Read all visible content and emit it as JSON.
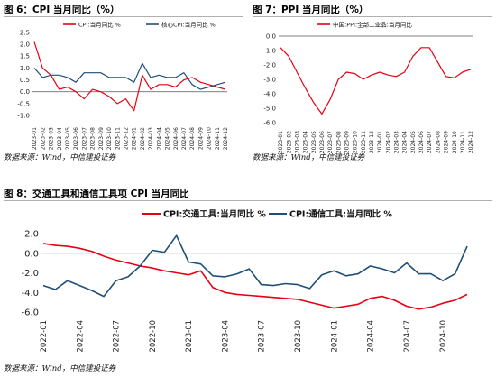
{
  "figures": [
    {
      "label": "图 6：CPI 当月同比（%）",
      "source": "数据来源：Wind，中信建投证券",
      "chart_data": {
        "type": "line",
        "x": [
          "2023-01",
          "2023-02",
          "2023-03",
          "2023-04",
          "2023-05",
          "2023-06",
          "2023-07",
          "2023-08",
          "2023-09",
          "2023-10",
          "2023-11",
          "2023-12",
          "2024-01",
          "2024-02",
          "2024-03",
          "2024-04",
          "2024-05",
          "2024-06",
          "2024-07",
          "2024-08",
          "2024-09",
          "2024-10",
          "2024-11",
          "2024-12"
        ],
        "x_ticks": [
          "2023-01",
          "2023-02",
          "2023-03",
          "2023-04",
          "2023-05",
          "2023-06",
          "2023-07",
          "2023-08",
          "2023-09",
          "2023-10",
          "2023-11",
          "2023-12",
          "2024-01",
          "2024-02",
          "2024-03",
          "2024-04",
          "2024-05",
          "2024-06",
          "2024-07",
          "2024-08",
          "2024-09",
          "2024-10",
          "2024-11",
          "2024-12"
        ],
        "ylim": [
          -1.0,
          2.5
        ],
        "yticks": [
          "-1.0",
          "-0.5",
          "0.0",
          "0.5",
          "1.0",
          "1.5",
          "2.0",
          "2.5"
        ],
        "legend_position": "top",
        "grid": false,
        "series": [
          {
            "name": "CPI:当月同比 %",
            "color": "#e60012",
            "values": [
              2.1,
              1.0,
              0.7,
              0.1,
              0.2,
              0.0,
              -0.3,
              0.1,
              0.0,
              -0.2,
              -0.5,
              -0.3,
              -0.8,
              0.7,
              0.1,
              0.3,
              0.3,
              0.2,
              0.5,
              0.6,
              0.4,
              0.3,
              0.2,
              0.1
            ]
          },
          {
            "name": "核心CPI:当月同比 %",
            "color": "#1f4e79",
            "values": [
              1.0,
              0.6,
              0.7,
              0.7,
              0.6,
              0.4,
              0.8,
              0.8,
              0.8,
              0.6,
              0.6,
              0.6,
              0.4,
              1.2,
              0.6,
              0.7,
              0.6,
              0.6,
              0.8,
              0.3,
              0.1,
              0.2,
              0.3,
              0.4
            ]
          }
        ]
      }
    },
    {
      "label": "图 7：PPI 当月同比（%）",
      "source": "数据来源：Wind，中信建投证券",
      "chart_data": {
        "type": "line",
        "x": [
          "2023-01",
          "2023-02",
          "2023-03",
          "2023-04",
          "2023-05",
          "2023-06",
          "2023-07",
          "2023-08",
          "2023-09",
          "2023-10",
          "2023-11",
          "2023-12",
          "2024-01",
          "2024-02",
          "2024-03",
          "2024-04",
          "2024-05",
          "2024-06",
          "2024-07",
          "2024-08",
          "2024-09",
          "2024-10",
          "2024-11",
          "2024-12"
        ],
        "x_ticks": [
          "2023-01",
          "2023-02",
          "2023-03",
          "2023-04",
          "2023-05",
          "2023-06",
          "2023-07",
          "2023-08",
          "2023-09",
          "2023-10",
          "2023-11",
          "2023-12",
          "2024-01",
          "2024-02",
          "2024-03",
          "2024-04",
          "2024-05",
          "2024-06",
          "2024-07",
          "2024-08",
          "2024-09",
          "2024-10",
          "2024-11",
          "2024-12"
        ],
        "ylim": [
          -6.0,
          0.0
        ],
        "yticks": [
          "0.0",
          "-1.0",
          "-2.0",
          "-3.0",
          "-4.0",
          "-5.0",
          "-6.0"
        ],
        "legend_position": "top",
        "grid": false,
        "series": [
          {
            "name": "中国:PPI:全部工业品:当月同比",
            "color": "#e60012",
            "values": [
              -0.8,
              -1.4,
              -2.5,
              -3.6,
              -4.6,
              -5.4,
              -4.4,
              -3.0,
              -2.5,
              -2.6,
              -3.0,
              -2.7,
              -2.5,
              -2.7,
              -2.8,
              -2.5,
              -1.4,
              -0.8,
              -0.8,
              -1.8,
              -2.8,
              -2.9,
              -2.5,
              -2.3
            ]
          }
        ]
      }
    },
    {
      "label": "图 8：交通工具和通信工具项 CPI 当月同比",
      "source": "数据来源：Wind，中信建投证券",
      "chart_data": {
        "type": "line",
        "x": [
          "2022-01",
          "2022-02",
          "2022-03",
          "2022-04",
          "2022-05",
          "2022-06",
          "2022-07",
          "2022-08",
          "2022-09",
          "2022-10",
          "2022-11",
          "2022-12",
          "2023-01",
          "2023-02",
          "2023-03",
          "2023-04",
          "2023-05",
          "2023-06",
          "2023-07",
          "2023-08",
          "2023-09",
          "2023-10",
          "2023-11",
          "2023-12",
          "2024-01",
          "2024-02",
          "2024-03",
          "2024-04",
          "2024-05",
          "2024-06",
          "2024-07",
          "2024-08",
          "2024-09",
          "2024-10",
          "2024-11",
          "2024-12"
        ],
        "x_ticks": [
          "2022-01",
          "2022-04",
          "2022-07",
          "2022-10",
          "2023-01",
          "2023-04",
          "2023-07",
          "2023-10",
          "2024-01",
          "2024-04",
          "2024-07",
          "2024-10"
        ],
        "ylim": [
          -6.0,
          2.0
        ],
        "yticks": [
          "2.0",
          "0.0",
          "-2.0",
          "-4.0",
          "-6.0"
        ],
        "legend_position": "top",
        "grid": false,
        "series": [
          {
            "name": "CPI:交通工具:当月同比 %",
            "color": "#e60012",
            "values": [
              1.0,
              0.8,
              0.7,
              0.5,
              0.2,
              -0.3,
              -0.7,
              -1.0,
              -1.3,
              -1.5,
              -1.8,
              -2.0,
              -2.2,
              -1.8,
              -3.5,
              -4.0,
              -4.2,
              -4.3,
              -4.4,
              -4.5,
              -4.6,
              -4.7,
              -5.0,
              -5.3,
              -5.6,
              -5.4,
              -5.2,
              -4.6,
              -4.4,
              -4.8,
              -5.4,
              -5.7,
              -5.5,
              -5.1,
              -4.8,
              -4.2
            ]
          },
          {
            "name": "CPI:通信工具:当月同比 %",
            "color": "#1f4e79",
            "values": [
              -3.3,
              -3.7,
              -2.8,
              -3.3,
              -3.8,
              -4.4,
              -2.8,
              -2.4,
              -1.3,
              0.3,
              0.1,
              1.8,
              -0.9,
              -1.1,
              -2.3,
              -2.4,
              -2.1,
              -1.6,
              -3.2,
              -3.3,
              -3.1,
              -3.2,
              -3.6,
              -2.2,
              -1.8,
              -2.3,
              -2.1,
              -1.3,
              -1.6,
              -2.0,
              -1.0,
              -2.1,
              -2.1,
              -2.8,
              -2.1,
              0.7
            ]
          }
        ]
      }
    }
  ]
}
